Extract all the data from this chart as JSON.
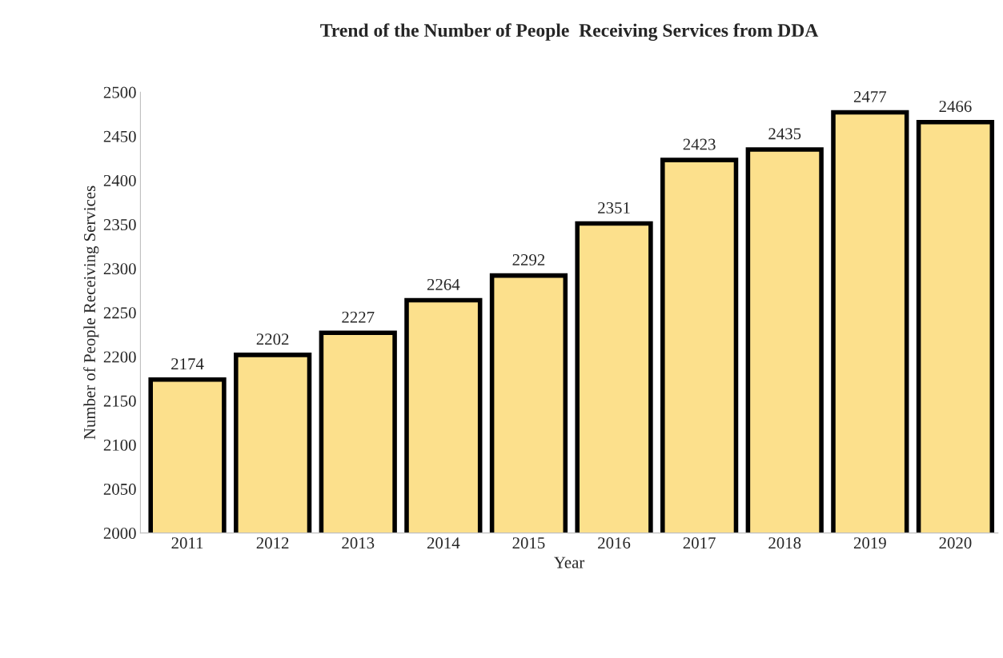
{
  "chart_data": {
    "type": "bar",
    "title": "Trend of the Number of People  Receiving Services from DDA",
    "xlabel": "Year",
    "ylabel": "Number of People Receiving Services",
    "categories": [
      "2011",
      "2012",
      "2013",
      "2014",
      "2015",
      "2016",
      "2017",
      "2018",
      "2019",
      "2020"
    ],
    "values": [
      2174,
      2202,
      2227,
      2264,
      2292,
      2351,
      2423,
      2435,
      2477,
      2466
    ],
    "color": "#fce08c",
    "ylim": [
      2000,
      2500
    ],
    "yticks": [
      2000,
      2050,
      2100,
      2150,
      2200,
      2250,
      2300,
      2350,
      2400,
      2450,
      2500
    ],
    "data_labels": true,
    "grid": false,
    "legend": false
  }
}
